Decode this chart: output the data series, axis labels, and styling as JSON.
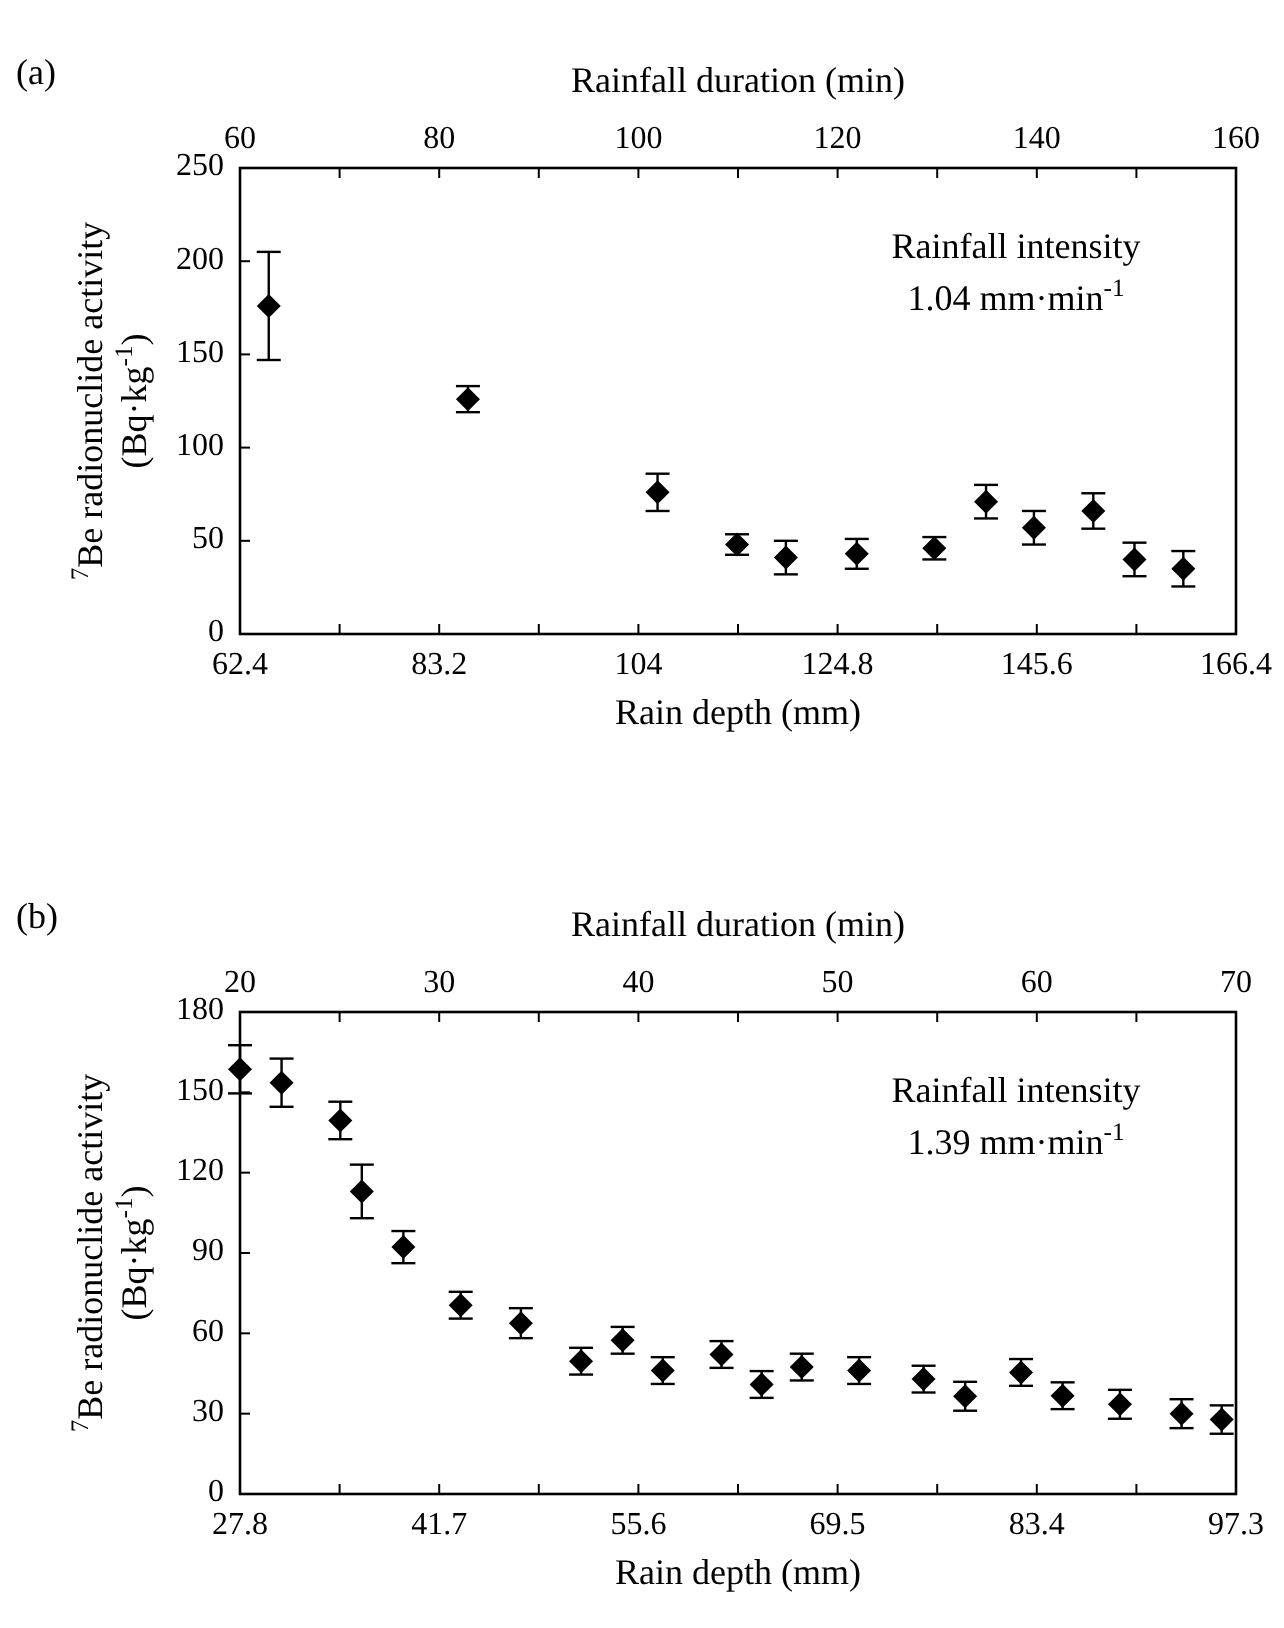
{
  "chart_data": [
    {
      "type": "scatter",
      "annotations": [
        "(a)",
        "Rainfall intensity\n1.04 mm·min$^{-1}$"
      ],
      "xlabel": "Rain depth (mm)",
      "x2label": "Rainfall duration (min)",
      "ylabel": "$^{7}$Be radionuclide activity\n(Bq·kg$^{-1}$)",
      "xlim": [
        62.4,
        166.4
      ],
      "xticks": [
        62.4,
        {
          "value": 72.8,
          "label": null
        },
        83.2,
        {
          "value": 93.6,
          "label": null
        },
        104,
        {
          "value": 114.4,
          "label": null
        },
        124.8,
        {
          "value": 135.2,
          "label": null
        },
        145.6,
        {
          "value": 156,
          "label": null
        },
        166.4
      ],
      "x2lim": [
        60,
        160
      ],
      "x2ticks": [
        60,
        {
          "value": 70,
          "label": null
        },
        80,
        {
          "value": 90,
          "label": null
        },
        100,
        {
          "value": 110,
          "label": null
        },
        120,
        {
          "value": 130,
          "label": null
        },
        140,
        {
          "value": 150,
          "label": null
        },
        160
      ],
      "ylim": [
        0,
        250
      ],
      "yticks": [
        0,
        50,
        100,
        150,
        200,
        250
      ],
      "marker": "diamond",
      "series": [
        {
          "color": "#000000",
          "x": [
            65.4,
            86.2,
            106.0,
            114.3,
            119.4,
            126.8,
            134.9,
            140.3,
            145.3,
            151.5,
            155.8,
            160.9
          ],
          "values": [
            176,
            126,
            76,
            48,
            41,
            43,
            46,
            71,
            57,
            66,
            40,
            35
          ],
          "errors": [
            29,
            7,
            10,
            5.5,
            9,
            8,
            6,
            9,
            9,
            9.5,
            9,
            9.5
          ]
        }
      ]
    },
    {
      "type": "scatter",
      "annotations": [
        "(b)",
        "Rainfall intensity\n1.39 mm·min$^{-1}$"
      ],
      "xlabel": "Rain depth (mm)",
      "x2label": "Rainfall duration (min)",
      "ylabel": "$^{7}$Be radionuclide activity\n(Bq·kg$^{-1}$)",
      "xlim": [
        27.8,
        97.3
      ],
      "xticks": [
        27.8,
        {
          "value": 34.75,
          "label": null
        },
        41.7,
        {
          "value": 48.65,
          "label": null
        },
        55.6,
        {
          "value": 62.55,
          "label": null
        },
        69.5,
        {
          "value": 76.45,
          "label": null
        },
        83.4,
        {
          "value": 90.35,
          "label": null
        },
        97.3
      ],
      "x2lim": [
        20,
        70
      ],
      "x2ticks": [
        20,
        {
          "value": 25,
          "label": null
        },
        30,
        {
          "value": 35,
          "label": null
        },
        40,
        {
          "value": 45,
          "label": null
        },
        50,
        {
          "value": 55,
          "label": null
        },
        60,
        {
          "value": 65,
          "label": null
        },
        70
      ],
      "ylim": [
        0,
        180
      ],
      "yticks": [
        0,
        30,
        60,
        90,
        120,
        150,
        180
      ],
      "marker": "diamond",
      "series": [
        {
          "color": "#000000",
          "x": [
            27.8,
            30.7,
            34.8,
            36.3,
            39.2,
            43.2,
            47.4,
            51.6,
            54.5,
            57.3,
            61.4,
            64.2,
            67.0,
            71.0,
            75.5,
            78.4,
            82.3,
            85.2,
            89.2,
            93.5,
            96.3
          ],
          "values": [
            158.6,
            153.6,
            139.5,
            113,
            92.2,
            70.5,
            63.8,
            49.6,
            57.4,
            46.1,
            52.1,
            40.9,
            47.4,
            46.1,
            42.9,
            36.5,
            45.4,
            36.7,
            33.5,
            30.0,
            27.8
          ],
          "errors": [
            9,
            9,
            7,
            10,
            6,
            5,
            5.6,
            5,
            5,
            5,
            5,
            5,
            5,
            5,
            5,
            5.4,
            5,
            5,
            5.4,
            5.4,
            5.3
          ]
        }
      ]
    }
  ]
}
